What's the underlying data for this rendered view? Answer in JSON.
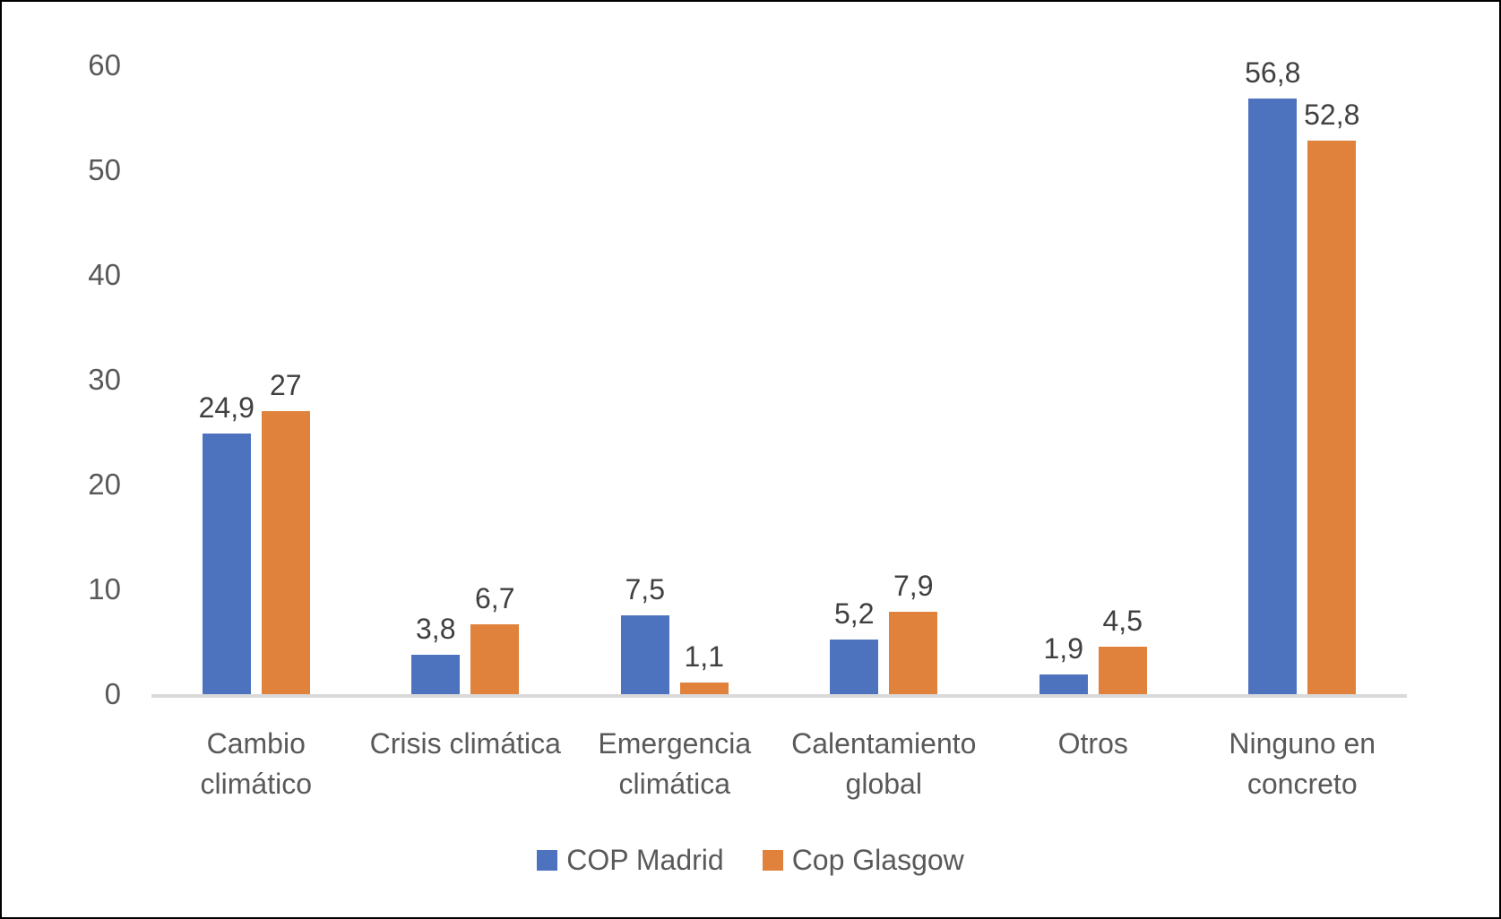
{
  "chart_data": {
    "type": "bar",
    "categories": [
      "Cambio climático",
      "Crisis climática",
      "Emergencia climática",
      "Calentamiento global",
      "Otros",
      "Ninguno en concreto"
    ],
    "category_lines": [
      [
        "Cambio",
        "climático"
      ],
      [
        "Crisis climática"
      ],
      [
        "Emergencia",
        "climática"
      ],
      [
        "Calentamiento",
        "global"
      ],
      [
        "Otros"
      ],
      [
        "Ninguno en",
        "concreto"
      ]
    ],
    "series": [
      {
        "name": "COP Madrid",
        "color": "#4E73BE",
        "values": [
          24.9,
          3.8,
          7.5,
          5.2,
          1.9,
          56.8
        ],
        "labels": [
          "24,9",
          "3,8",
          "7,5",
          "5,2",
          "1,9",
          "56,8"
        ]
      },
      {
        "name": "Cop Glasgow",
        "color": "#E0813C",
        "values": [
          27,
          6.7,
          1.1,
          7.9,
          4.5,
          52.8
        ],
        "labels": [
          "27",
          "6,7",
          "1,1",
          "7,9",
          "4,5",
          "52,8"
        ]
      }
    ],
    "yticks": [
      0,
      10,
      20,
      30,
      40,
      50,
      60
    ],
    "ylim": [
      0,
      60
    ],
    "grid": false,
    "legend_position": "bottom",
    "axis_line_color": "#D9D9D9",
    "text_color": "#595959",
    "data_label_color": "#404040"
  }
}
